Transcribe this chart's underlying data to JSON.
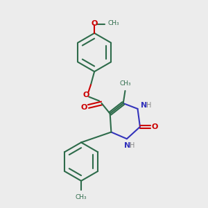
{
  "bg_color": "#ececec",
  "bond_color": "#2d6b4a",
  "oxygen_color": "#cc0000",
  "nitrogen_color": "#3333bb",
  "line_width": 1.5,
  "fig_size": [
    3.0,
    3.0
  ],
  "dpi": 100,
  "xlim": [
    1.5,
    8.5
  ],
  "ylim": [
    1.0,
    9.5
  ]
}
